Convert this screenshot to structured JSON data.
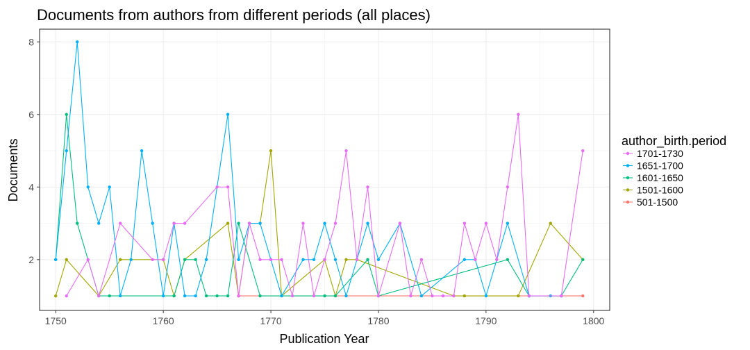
{
  "chart_data": {
    "type": "line",
    "title": "Documents from authors from different periods (all places)",
    "xlabel": "Publication Year",
    "ylabel": "Documents",
    "xlim": [
      1748.5,
      1801.5
    ],
    "ylim": [
      0.6,
      8.35
    ],
    "xticks": [
      1750,
      1760,
      1770,
      1780,
      1790,
      1800
    ],
    "yticks": [
      2,
      4,
      6,
      8
    ],
    "grid": true,
    "legend": {
      "title": "author_birth.period",
      "position": "right"
    },
    "series": [
      {
        "name": "501-1500",
        "color": "#F8766D",
        "points": [
          [
            1767,
            1
          ],
          [
            1799,
            1
          ]
        ]
      },
      {
        "name": "1501-1600",
        "color": "#A3A500",
        "points": [
          [
            1750,
            1
          ],
          [
            1751,
            2
          ],
          [
            1754,
            1
          ],
          [
            1756,
            2
          ],
          [
            1760,
            2
          ],
          [
            1761,
            1
          ],
          [
            1762,
            2
          ],
          [
            1766,
            3
          ],
          [
            1767,
            1
          ],
          [
            1768,
            3
          ],
          [
            1769,
            3
          ],
          [
            1770,
            5
          ],
          [
            1771,
            1
          ],
          [
            1775,
            2
          ],
          [
            1776,
            1
          ],
          [
            1777,
            2
          ],
          [
            1778,
            2
          ],
          [
            1787,
            1
          ],
          [
            1788,
            1
          ],
          [
            1793,
            1
          ],
          [
            1796,
            3
          ],
          [
            1799,
            2
          ]
        ]
      },
      {
        "name": "1601-1650",
        "color": "#00BF7D",
        "points": [
          [
            1750,
            2
          ],
          [
            1751,
            6
          ],
          [
            1752,
            3
          ],
          [
            1754,
            1
          ],
          [
            1755,
            1
          ],
          [
            1761,
            1
          ],
          [
            1762,
            2
          ],
          [
            1763,
            2
          ],
          [
            1764,
            1
          ],
          [
            1765,
            1
          ],
          [
            1766,
            1
          ],
          [
            1767,
            3
          ],
          [
            1769,
            1
          ],
          [
            1775,
            1
          ],
          [
            1776,
            1
          ],
          [
            1779,
            2
          ],
          [
            1780,
            1
          ],
          [
            1792,
            2
          ],
          [
            1794,
            1
          ],
          [
            1797,
            1
          ],
          [
            1799,
            2
          ]
        ]
      },
      {
        "name": "1651-1700",
        "color": "#00B0F6",
        "points": [
          [
            1750,
            2
          ],
          [
            1751,
            5
          ],
          [
            1752,
            8
          ],
          [
            1753,
            4
          ],
          [
            1754,
            3
          ],
          [
            1755,
            4
          ],
          [
            1756,
            1
          ],
          [
            1757,
            2
          ],
          [
            1758,
            5
          ],
          [
            1759,
            3
          ],
          [
            1760,
            1
          ],
          [
            1761,
            3
          ],
          [
            1762,
            1
          ],
          [
            1763,
            1
          ],
          [
            1764,
            2
          ],
          [
            1766,
            6
          ],
          [
            1767,
            2
          ],
          [
            1768,
            3
          ],
          [
            1769,
            3
          ],
          [
            1770,
            2
          ],
          [
            1771,
            1
          ],
          [
            1773,
            2
          ],
          [
            1774,
            2
          ],
          [
            1775,
            3
          ],
          [
            1776,
            2
          ],
          [
            1777,
            1
          ],
          [
            1779,
            3
          ],
          [
            1780,
            2
          ],
          [
            1782,
            3
          ],
          [
            1784,
            1
          ],
          [
            1788,
            2
          ],
          [
            1789,
            2
          ],
          [
            1790,
            1
          ],
          [
            1792,
            3
          ],
          [
            1794,
            1
          ],
          [
            1796,
            1
          ],
          [
            1797,
            1
          ]
        ]
      },
      {
        "name": "1701-1730",
        "color": "#E76BF3",
        "points": [
          [
            1751,
            1
          ],
          [
            1753,
            2
          ],
          [
            1754,
            1
          ],
          [
            1756,
            3
          ],
          [
            1759,
            2
          ],
          [
            1760,
            2
          ],
          [
            1761,
            3
          ],
          [
            1762,
            3
          ],
          [
            1765,
            4
          ],
          [
            1766,
            4
          ],
          [
            1767,
            1
          ],
          [
            1768,
            3
          ],
          [
            1769,
            2
          ],
          [
            1770,
            2
          ],
          [
            1771,
            2
          ],
          [
            1772,
            1
          ],
          [
            1773,
            3
          ],
          [
            1774,
            1
          ],
          [
            1775,
            2
          ],
          [
            1776,
            3
          ],
          [
            1777,
            5
          ],
          [
            1778,
            2
          ],
          [
            1779,
            4
          ],
          [
            1780,
            1
          ],
          [
            1782,
            3
          ],
          [
            1783,
            1
          ],
          [
            1784,
            2
          ],
          [
            1785,
            1
          ],
          [
            1786,
            1
          ],
          [
            1787,
            1
          ],
          [
            1788,
            3
          ],
          [
            1789,
            2
          ],
          [
            1790,
            3
          ],
          [
            1791,
            2
          ],
          [
            1792,
            4
          ],
          [
            1793,
            6
          ],
          [
            1794,
            1
          ],
          [
            1797,
            1
          ],
          [
            1799,
            5
          ]
        ]
      }
    ]
  },
  "legend_order": [
    "1701-1730",
    "1651-1700",
    "1601-1650",
    "1501-1600",
    "501-1500"
  ]
}
